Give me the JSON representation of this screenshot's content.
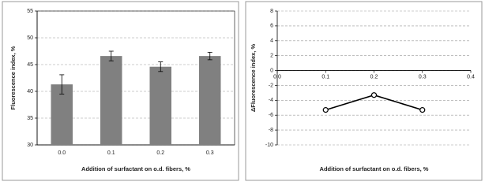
{
  "chart_data": [
    {
      "type": "bar",
      "xlabel": "Addition of surfactant on o.d. fibers, %",
      "ylabel": "Fluorescence index, %",
      "categories": [
        "0.0",
        "0.1",
        "0.2",
        "0.3"
      ],
      "values": [
        41.3,
        46.6,
        44.6,
        46.6
      ],
      "errors": [
        1.8,
        0.9,
        0.9,
        0.7
      ],
      "color": "#808080",
      "ylim": [
        30,
        55
      ],
      "yticks": [
        30,
        35,
        40,
        45,
        50,
        55
      ],
      "grid": true
    },
    {
      "type": "line",
      "xlabel": "Addition of surfactant on o.d. fibers, %",
      "ylabel": "ΔFluorescence index, %",
      "x": [
        0.1,
        0.2,
        0.3
      ],
      "values": [
        -5.3,
        -3.3,
        -5.3
      ],
      "color": "#000000",
      "xlim": [
        0,
        0.4
      ],
      "xticks": [
        {
          "value": 0,
          "label": "0.0"
        },
        0.1,
        0.2,
        0.3,
        0.4
      ],
      "ylim": [
        -10,
        8
      ],
      "yticks": [
        -10,
        -8,
        -6,
        -4,
        -2,
        0,
        2,
        4,
        6,
        8
      ],
      "grid": true
    }
  ]
}
